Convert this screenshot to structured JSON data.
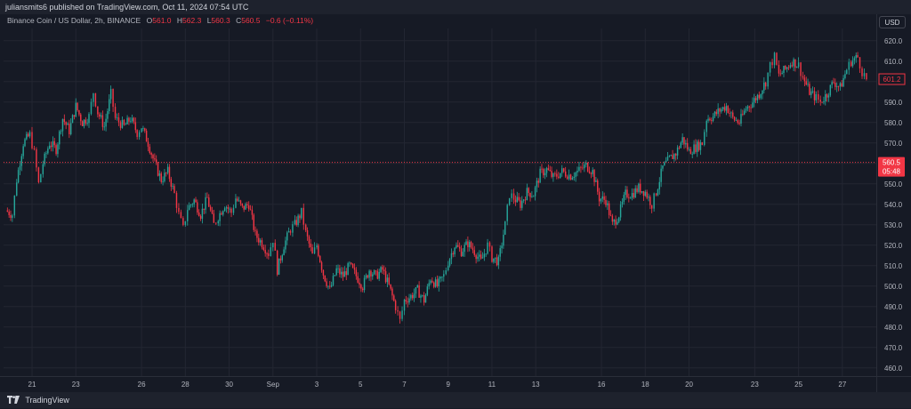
{
  "header": {
    "publisher": "juliansmits6 published on TradingView.com, Oct 11, 2024 07:54 UTC"
  },
  "legend": {
    "symbol": "Binance Coin / US Dollar, 2h, BINANCE",
    "open_label": "O",
    "open": "561.0",
    "high_label": "H",
    "high": "562.3",
    "low_label": "L",
    "low": "560.3",
    "close_label": "C",
    "close": "560.5",
    "change": "−0.6 (−0.11%)"
  },
  "currency_button": "USD",
  "footer": {
    "brand": "TradingView"
  },
  "colors": {
    "up": "#26a69a",
    "down": "#f23645",
    "background": "#161a25",
    "grid": "#232632"
  },
  "chart_data": {
    "type": "candlestick",
    "title": "Binance Coin / US Dollar, 2h, BINANCE",
    "ylim": [
      456,
      626
    ],
    "y_ticks": [
      460,
      470,
      480,
      490,
      500,
      510,
      520,
      530,
      540,
      550,
      560,
      570,
      580,
      590,
      600,
      610,
      620
    ],
    "y_tick_labels": [
      "460.0",
      "470.0",
      "480.0",
      "490.0",
      "500.0",
      "510.0",
      "520.0",
      "530.0",
      "540.0",
      "550.0",
      "560.0",
      "570.0",
      "580.0",
      "590.0",
      "600.0",
      "610.0",
      "620.0"
    ],
    "x_ticks": [
      {
        "label": "21",
        "day": 21
      },
      {
        "label": "23",
        "day": 23
      },
      {
        "label": "26",
        "day": 26
      },
      {
        "label": "28",
        "day": 28
      },
      {
        "label": "30",
        "day": 30
      },
      {
        "label": "Sep",
        "day": 32
      },
      {
        "label": "3",
        "day": 34
      },
      {
        "label": "5",
        "day": 36
      },
      {
        "label": "7",
        "day": 38
      },
      {
        "label": "9",
        "day": 40
      },
      {
        "label": "11",
        "day": 42
      },
      {
        "label": "13",
        "day": 44
      },
      {
        "label": "16",
        "day": 47
      },
      {
        "label": "18",
        "day": 49
      },
      {
        "label": "20",
        "day": 51
      },
      {
        "label": "23",
        "day": 54
      },
      {
        "label": "25",
        "day": 56
      },
      {
        "label": "27",
        "day": 58
      }
    ],
    "current_price": 560.5,
    "current_price_label": "560.5",
    "countdown_label": "05:48",
    "last_visible_close": 601.2,
    "last_visible_close_label": "601.2",
    "path_points": [
      [
        19.8,
        537
      ],
      [
        20.1,
        535
      ],
      [
        20.3,
        552
      ],
      [
        20.6,
        570
      ],
      [
        20.9,
        574
      ],
      [
        21.1,
        565
      ],
      [
        21.3,
        550
      ],
      [
        21.5,
        560
      ],
      [
        21.8,
        570
      ],
      [
        22.1,
        567
      ],
      [
        22.4,
        582
      ],
      [
        22.7,
        576
      ],
      [
        23.0,
        588
      ],
      [
        23.3,
        580
      ],
      [
        23.6,
        583
      ],
      [
        23.8,
        595
      ],
      [
        24.0,
        585
      ],
      [
        24.3,
        578
      ],
      [
        24.6,
        594
      ],
      [
        24.8,
        582
      ],
      [
        25.2,
        578
      ],
      [
        25.5,
        582
      ],
      [
        25.8,
        575
      ],
      [
        26.0,
        578
      ],
      [
        26.3,
        570
      ],
      [
        26.6,
        560
      ],
      [
        26.9,
        552
      ],
      [
        27.2,
        556
      ],
      [
        27.5,
        545
      ],
      [
        27.7,
        535
      ],
      [
        27.9,
        528
      ],
      [
        28.1,
        538
      ],
      [
        28.4,
        542
      ],
      [
        28.7,
        535
      ],
      [
        29.0,
        543
      ],
      [
        29.3,
        530
      ],
      [
        29.5,
        534
      ],
      [
        29.8,
        540
      ],
      [
        30.1,
        536
      ],
      [
        30.3,
        543
      ],
      [
        30.6,
        538
      ],
      [
        30.9,
        540
      ],
      [
        31.2,
        525
      ],
      [
        31.5,
        521
      ],
      [
        31.8,
        516
      ],
      [
        32.0,
        523
      ],
      [
        32.2,
        508
      ],
      [
        32.5,
        520
      ],
      [
        32.8,
        528
      ],
      [
        33.0,
        530
      ],
      [
        33.3,
        536
      ],
      [
        33.5,
        526
      ],
      [
        33.8,
        515
      ],
      [
        34.0,
        520
      ],
      [
        34.3,
        506
      ],
      [
        34.6,
        498
      ],
      [
        34.9,
        508
      ],
      [
        35.2,
        505
      ],
      [
        35.5,
        510
      ],
      [
        35.8,
        505
      ],
      [
        36.1,
        500
      ],
      [
        36.4,
        508
      ],
      [
        36.7,
        505
      ],
      [
        37.0,
        508
      ],
      [
        37.3,
        500
      ],
      [
        37.6,
        490
      ],
      [
        37.8,
        483
      ],
      [
        38.0,
        493
      ],
      [
        38.3,
        495
      ],
      [
        38.6,
        498
      ],
      [
        38.9,
        493
      ],
      [
        39.2,
        504
      ],
      [
        39.5,
        500
      ],
      [
        39.8,
        505
      ],
      [
        40.0,
        512
      ],
      [
        40.3,
        520
      ],
      [
        40.6,
        517
      ],
      [
        40.9,
        521
      ],
      [
        41.2,
        517
      ],
      [
        41.5,
        512
      ],
      [
        41.8,
        520
      ],
      [
        42.0,
        514
      ],
      [
        42.3,
        512
      ],
      [
        42.6,
        530
      ],
      [
        42.8,
        545
      ],
      [
        43.0,
        543
      ],
      [
        43.3,
        540
      ],
      [
        43.6,
        546
      ],
      [
        43.9,
        545
      ],
      [
        44.2,
        555
      ],
      [
        44.5,
        557
      ],
      [
        44.8,
        553
      ],
      [
        45.2,
        556
      ],
      [
        45.6,
        554
      ],
      [
        45.9,
        556
      ],
      [
        46.3,
        559
      ],
      [
        46.6,
        556
      ],
      [
        46.9,
        543
      ],
      [
        47.2,
        542
      ],
      [
        47.5,
        530
      ],
      [
        47.8,
        535
      ],
      [
        48.1,
        545
      ],
      [
        48.4,
        545
      ],
      [
        48.7,
        548
      ],
      [
        49.0,
        546
      ],
      [
        49.3,
        540
      ],
      [
        49.5,
        546
      ],
      [
        49.8,
        558
      ],
      [
        50.1,
        562
      ],
      [
        50.4,
        565
      ],
      [
        50.7,
        572
      ],
      [
        51.0,
        566
      ],
      [
        51.3,
        568
      ],
      [
        51.6,
        570
      ],
      [
        51.8,
        582
      ],
      [
        52.1,
        583
      ],
      [
        52.4,
        586
      ],
      [
        52.7,
        588
      ],
      [
        53.0,
        582
      ],
      [
        53.3,
        580
      ],
      [
        53.6,
        587
      ],
      [
        53.9,
        590
      ],
      [
        54.2,
        594
      ],
      [
        54.5,
        600
      ],
      [
        54.7,
        608
      ],
      [
        54.9,
        612
      ],
      [
        55.1,
        603
      ],
      [
        55.4,
        606
      ],
      [
        55.7,
        610
      ],
      [
        56.0,
        608
      ],
      [
        56.2,
        602
      ],
      [
        56.5,
        595
      ],
      [
        56.8,
        592
      ],
      [
        57.0,
        590
      ],
      [
        57.3,
        594
      ],
      [
        57.6,
        600
      ],
      [
        57.9,
        597
      ],
      [
        58.2,
        606
      ],
      [
        58.4,
        610
      ],
      [
        58.7,
        612
      ],
      [
        58.9,
        605
      ],
      [
        59.1,
        601.2
      ]
    ]
  }
}
